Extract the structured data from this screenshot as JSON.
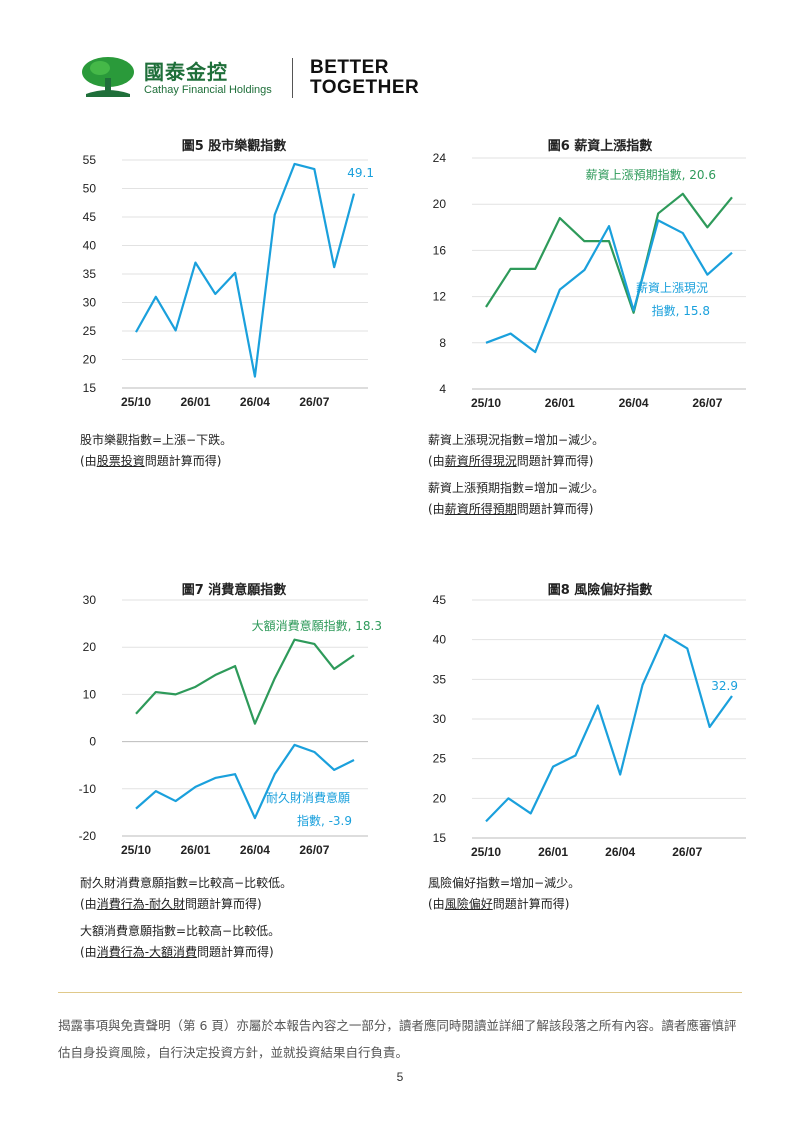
{
  "header": {
    "brand_cn": "國泰金控",
    "brand_en": "Cathay Financial Holdings",
    "slogan_line1": "BETTER",
    "slogan_line2": "TOGETHER"
  },
  "colors": {
    "blue": "#1aa0dc",
    "green": "#2e9a5a",
    "brand": "#1f6f3a"
  },
  "chart_data": [
    {
      "type": "line",
      "title": "圖5  股市樂觀指數",
      "x_tick_labels": [
        "25/10",
        "26/01",
        "26/04",
        "26/07"
      ],
      "ylim": [
        15,
        55
      ],
      "y_ticks": [
        15,
        20,
        25,
        30,
        35,
        40,
        45,
        50,
        55
      ],
      "series": [
        {
          "color": "#1aa0dc",
          "values": [
            24.8,
            31.0,
            25.1,
            37.0,
            31.5,
            35.2,
            17.0,
            45.4,
            54.3,
            53.4,
            36.2,
            49.1
          ],
          "end_label": [
            "49.1"
          ]
        }
      ]
    },
    {
      "type": "line",
      "title": "圖6  薪資上漲指數",
      "x_tick_labels": [
        "25/10",
        "26/01",
        "26/04",
        "26/07"
      ],
      "ylim": [
        4,
        24
      ],
      "y_ticks": [
        4,
        8,
        12,
        16,
        20,
        24
      ],
      "series": [
        {
          "name": "薪資上漲預期指數, 20.6",
          "color": "#2e9a5a",
          "values": [
            11.1,
            14.4,
            14.4,
            18.8,
            16.8,
            16.8,
            10.6,
            19.2,
            20.9,
            18.0,
            20.6
          ]
        },
        {
          "name": "薪資上漲現況指數, 15.8",
          "color": "#1aa0dc",
          "values": [
            8.0,
            8.8,
            7.2,
            12.6,
            14.3,
            18.1,
            10.8,
            18.6,
            17.5,
            13.9,
            15.8
          ]
        }
      ]
    },
    {
      "type": "line",
      "title": "圖7  消費意願指數",
      "x_tick_labels": [
        "25/10",
        "26/01",
        "26/04",
        "26/07"
      ],
      "ylim": [
        -20,
        30
      ],
      "y_ticks": [
        -20,
        -10,
        0,
        10,
        20,
        30
      ],
      "series": [
        {
          "name": "大額消費意願指數, 18.3",
          "color": "#2e9a5a",
          "values": [
            5.9,
            10.5,
            10.0,
            11.6,
            14.1,
            16.0,
            3.8,
            13.4,
            21.6,
            20.7,
            15.4,
            18.3
          ]
        },
        {
          "name": "耐久財消費意願指數, -3.9",
          "color": "#1aa0dc",
          "values": [
            -14.2,
            -10.5,
            -12.6,
            -9.6,
            -7.7,
            -6.9,
            -16.2,
            -6.9,
            -0.7,
            -2.2,
            -6.0,
            -3.9
          ]
        }
      ]
    },
    {
      "type": "line",
      "title": "圖8  風險偏好指數",
      "x_tick_labels": [
        "25/10",
        "26/01",
        "26/04",
        "26/07"
      ],
      "ylim": [
        15,
        45
      ],
      "y_ticks": [
        15,
        20,
        25,
        30,
        35,
        40,
        45
      ],
      "series": [
        {
          "color": "#1aa0dc",
          "values": [
            17.1,
            20.0,
            18.1,
            24.0,
            25.4,
            31.7,
            23.0,
            34.3,
            40.6,
            38.9,
            29.0,
            32.9
          ],
          "end_label": [
            "32.9"
          ]
        }
      ]
    }
  ],
  "notes": {
    "chart5": [
      {
        "text": "股市樂觀指數=上漲−下跌。"
      },
      {
        "pre": "(由",
        "ul": "股票投資",
        "post": "問題計算而得)"
      }
    ],
    "chart6": [
      {
        "text": "薪資上漲現況指數=增加−減少。"
      },
      {
        "pre": "(由",
        "ul": "薪資所得現況",
        "post": "問題計算而得)"
      },
      {
        "text": "薪資上漲預期指數=增加−減少。"
      },
      {
        "pre": "(由",
        "ul": "薪資所得預期",
        "post": "問題計算而得)"
      }
    ],
    "chart7": [
      {
        "text": "耐久財消費意願指數=比較高−比較低。"
      },
      {
        "pre": "(由",
        "ul": "消費行為-耐久財",
        "post": "問題計算而得)"
      },
      {
        "text": "大額消費意願指數=比較高−比較低。"
      },
      {
        "pre": "(由",
        "ul": "消費行為-大額消費",
        "post": "問題計算而得)"
      }
    ],
    "chart8": [
      {
        "text": "風險偏好指數=增加−減少。"
      },
      {
        "pre": "(由",
        "ul": "風險偏好",
        "post": "問題計算而得)"
      }
    ]
  },
  "footer": {
    "disclaimer": "揭露事項與免責聲明（第 6 頁）亦屬於本報告內容之一部分，讀者應同時閱讀並詳細了解該段落之所有內容。讀者應審慎評估自身投資風險，自行決定投資方針，並就投資結果自行負責。",
    "page_number": "5"
  }
}
